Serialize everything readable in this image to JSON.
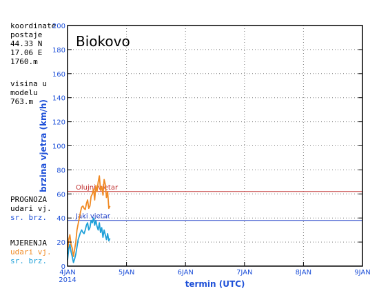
{
  "station_info": {
    "lines": [
      "koordinate",
      "postaje",
      "44.33 N",
      "17.06 E",
      "1760.m"
    ],
    "model_lines": [
      "visina u",
      "modelu",
      "763.m"
    ]
  },
  "forecast_legend": {
    "heading": "PROGNOZA",
    "items": [
      {
        "label": "udari vj.",
        "color": "#000000"
      },
      {
        "label": "sr. brz.",
        "color": "#1e50d8"
      }
    ]
  },
  "measured_legend": {
    "heading": "MJERENJA",
    "items": [
      {
        "label": "udari vj.",
        "color": "#f08a24"
      },
      {
        "label": "sr. brz.",
        "color": "#1fa0d8"
      }
    ]
  },
  "chart_data": {
    "type": "line",
    "title": "Biokovo",
    "xlabel": "termin (UTC)",
    "ylabel": "brzina vjetra (km/h)",
    "ylim": [
      0,
      200
    ],
    "yticks": [
      0,
      20,
      40,
      60,
      80,
      100,
      120,
      140,
      160,
      180,
      200
    ],
    "xlim": [
      0,
      5
    ],
    "xticks": [
      {
        "x": 0,
        "label": "4JAN",
        "sublabel": "2014"
      },
      {
        "x": 1,
        "label": "5JAN"
      },
      {
        "x": 2,
        "label": "6JAN"
      },
      {
        "x": 3,
        "label": "7JAN"
      },
      {
        "x": 4,
        "label": "8JAN"
      },
      {
        "x": 5,
        "label": "9JAN"
      }
    ],
    "grid": true,
    "reference_lines": [
      {
        "y": 62,
        "label": "Olujni vjetar",
        "color": "#c03030"
      },
      {
        "y": 38,
        "label": "Jaki vjetar",
        "color": "#2040c8"
      }
    ],
    "series": [
      {
        "name": "udari vj.",
        "color": "#f08a24",
        "x": [
          0.0,
          0.02,
          0.04,
          0.06,
          0.08,
          0.1,
          0.12,
          0.14,
          0.16,
          0.18,
          0.2,
          0.22,
          0.24,
          0.26,
          0.28,
          0.3,
          0.32,
          0.34,
          0.36,
          0.38,
          0.4,
          0.42,
          0.44,
          0.46,
          0.48,
          0.5,
          0.52,
          0.54,
          0.56,
          0.58,
          0.6,
          0.62,
          0.64,
          0.66,
          0.68,
          0.7,
          0.72
        ],
        "values": [
          10,
          22,
          26,
          18,
          15,
          8,
          14,
          20,
          30,
          35,
          40,
          45,
          49,
          50,
          48,
          47,
          52,
          55,
          48,
          50,
          58,
          60,
          64,
          55,
          67,
          62,
          70,
          75,
          63,
          66,
          59,
          72,
          68,
          57,
          62,
          48,
          50
        ]
      },
      {
        "name": "sr. brz.",
        "color": "#1fa0d8",
        "x": [
          0.0,
          0.02,
          0.04,
          0.06,
          0.08,
          0.1,
          0.12,
          0.14,
          0.16,
          0.18,
          0.2,
          0.22,
          0.24,
          0.26,
          0.28,
          0.3,
          0.32,
          0.34,
          0.36,
          0.38,
          0.4,
          0.42,
          0.44,
          0.46,
          0.48,
          0.5,
          0.52,
          0.54,
          0.56,
          0.58,
          0.6,
          0.62,
          0.64,
          0.66,
          0.68,
          0.7,
          0.72
        ],
        "values": [
          5,
          14,
          18,
          12,
          8,
          3,
          6,
          10,
          16,
          22,
          25,
          28,
          30,
          28,
          27,
          30,
          34,
          36,
          30,
          32,
          38,
          36,
          40,
          34,
          38,
          33,
          30,
          36,
          28,
          32,
          24,
          30,
          26,
          22,
          27,
          21,
          23
        ]
      }
    ]
  }
}
